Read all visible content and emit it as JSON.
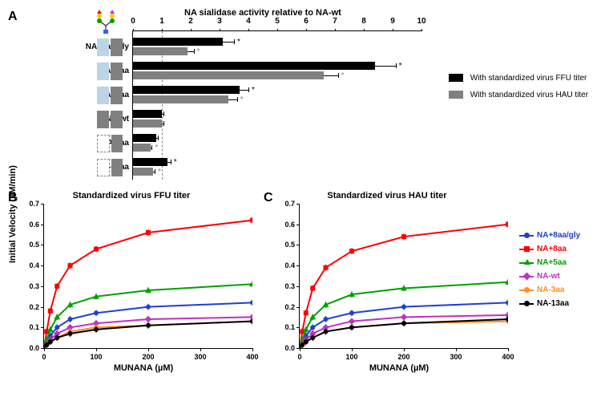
{
  "panelA": {
    "label": "A",
    "title": "NA sialidase activity relative to NA-wt",
    "xmin": 0,
    "xmax": 10,
    "xtick_step": 1,
    "dashed_at": 1,
    "categories": [
      "NA+8aa/gly",
      "NA+8aa",
      "NA+5aa",
      "NA-wt",
      "NA-3aa",
      "NA-13aa"
    ],
    "glyph_style": [
      {
        "left": "light",
        "right": "grey",
        "tree": true
      },
      {
        "left": "light",
        "right": "grey"
      },
      {
        "left": "light",
        "right": "grey"
      },
      {
        "left": "grey",
        "right": "grey"
      },
      {
        "left": "dashed",
        "right": "grey"
      },
      {
        "left": "dashed",
        "right": "grey"
      }
    ],
    "series": {
      "black": {
        "label": "With standardized virus FFU titer",
        "color": "#000000",
        "values": [
          3.1,
          8.4,
          3.7,
          1.0,
          0.8,
          1.2
        ],
        "err": [
          0.4,
          0.7,
          0.3,
          0.05,
          0.05,
          0.1
        ],
        "sig": [
          true,
          true,
          true,
          false,
          false,
          true
        ]
      },
      "grey": {
        "label": "With standardized virus HAU titer",
        "color": "#808080",
        "values": [
          1.9,
          6.6,
          3.3,
          1.0,
          0.6,
          0.7
        ],
        "err": [
          0.2,
          0.5,
          0.3,
          0.05,
          0.05,
          0.05
        ],
        "sig": [
          true,
          true,
          true,
          false,
          true,
          true
        ]
      }
    }
  },
  "panelB": {
    "label": "B",
    "title": "Standardized virus FFU titer",
    "ylabel": "Initial Velocity (µM/min)",
    "xlabel": "MUNANA (µM)",
    "xlim": [
      0,
      400
    ],
    "ylim": [
      0,
      0.7
    ],
    "xticks": [
      0,
      100,
      200,
      300,
      400
    ],
    "yticks": [
      0,
      0.1,
      0.2,
      0.3,
      0.4,
      0.5,
      0.6,
      0.7
    ]
  },
  "panelC": {
    "label": "C",
    "title": "Standardized virus HAU titer",
    "xlabel": "MUNANA (µM)",
    "xlim": [
      0,
      400
    ],
    "ylim": [
      0,
      0.7
    ],
    "xticks": [
      0,
      100,
      200,
      300,
      400
    ],
    "yticks": [
      0,
      0.1,
      0.2,
      0.3,
      0.4,
      0.5,
      0.6,
      0.7
    ]
  },
  "curves": {
    "x": [
      5,
      12,
      25,
      50,
      100,
      200,
      400
    ],
    "series": [
      {
        "name": "NA+8aa/gly",
        "color": "#1f3fd4",
        "marker": "circle",
        "B": [
          0.03,
          0.06,
          0.1,
          0.14,
          0.17,
          0.2,
          0.22
        ],
        "C": [
          0.03,
          0.06,
          0.1,
          0.14,
          0.17,
          0.2,
          0.22
        ]
      },
      {
        "name": "NA+8aa",
        "color": "#ff0000",
        "marker": "square",
        "B": [
          0.08,
          0.18,
          0.3,
          0.4,
          0.48,
          0.56,
          0.62
        ],
        "C": [
          0.08,
          0.17,
          0.29,
          0.39,
          0.47,
          0.54,
          0.6
        ]
      },
      {
        "name": "NA+5aa",
        "color": "#00a000",
        "marker": "triangle",
        "B": [
          0.04,
          0.09,
          0.15,
          0.21,
          0.25,
          0.28,
          0.31
        ],
        "C": [
          0.04,
          0.09,
          0.15,
          0.21,
          0.26,
          0.29,
          0.32
        ]
      },
      {
        "name": "NA-wt",
        "color": "#c030c0",
        "marker": "diamond",
        "B": [
          0.02,
          0.04,
          0.07,
          0.1,
          0.12,
          0.14,
          0.15
        ],
        "C": [
          0.02,
          0.04,
          0.07,
          0.1,
          0.13,
          0.15,
          0.16
        ]
      },
      {
        "name": "NA-3aa",
        "color": "#ff9020",
        "marker": "circle",
        "B": [
          0.015,
          0.03,
          0.05,
          0.08,
          0.1,
          0.11,
          0.13
        ],
        "C": [
          0.015,
          0.03,
          0.05,
          0.08,
          0.1,
          0.12,
          0.13
        ]
      },
      {
        "name": "NA-13aa",
        "color": "#000000",
        "marker": "circle",
        "B": [
          0.015,
          0.03,
          0.05,
          0.07,
          0.09,
          0.11,
          0.13
        ],
        "C": [
          0.015,
          0.03,
          0.05,
          0.08,
          0.1,
          0.12,
          0.14
        ]
      }
    ]
  },
  "colors": {
    "bg": "#ffffff",
    "axis": "#000000"
  }
}
